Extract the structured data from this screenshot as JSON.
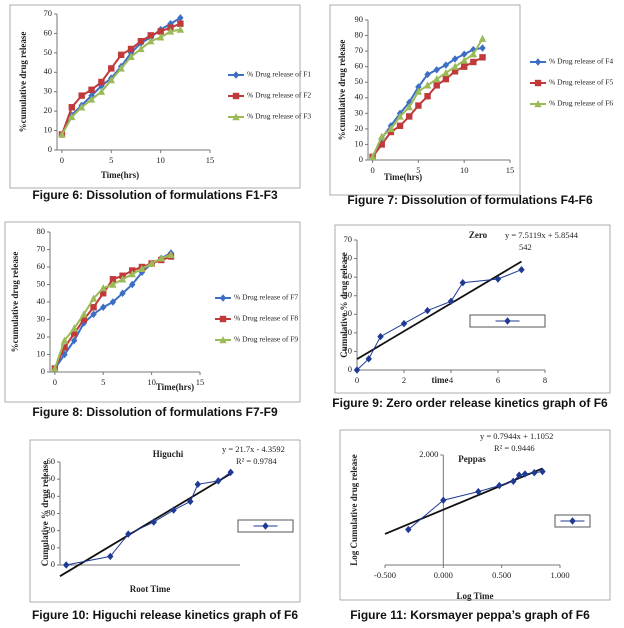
{
  "chart_data": [
    {
      "type": "line",
      "caption": "Figure 6: Dissolution of formulations F1-F3",
      "y_label": "%cumulative drug release",
      "x_label": "Time(hrs)",
      "x": [
        0,
        1,
        2,
        3,
        4,
        5,
        6,
        7,
        8,
        9,
        10,
        11,
        12
      ],
      "xlim": [
        -0.5,
        15
      ],
      "xticks": [
        0,
        5,
        10,
        15
      ],
      "ylim": [
        0,
        70
      ],
      "yticks": [
        0,
        10,
        20,
        30,
        40,
        50,
        60,
        70
      ],
      "series": [
        {
          "name": "% Drug release of F1",
          "color": "#3c6fc4",
          "marker": "diamond",
          "values": [
            8,
            18,
            23,
            28,
            33,
            37,
            43,
            50,
            55,
            58,
            62,
            65,
            68
          ]
        },
        {
          "name": "% Drug release of F2",
          "color": "#c0393b",
          "marker": "square",
          "values": [
            8,
            22,
            28,
            31,
            35,
            42,
            49,
            52,
            56,
            59,
            61,
            63,
            65
          ]
        },
        {
          "name": "% Drug release of F3",
          "color": "#9bbb59",
          "marker": "triangle",
          "values": [
            8,
            17,
            22,
            26,
            30,
            36,
            42,
            48,
            52,
            56,
            58,
            61,
            62
          ]
        }
      ]
    },
    {
      "type": "line",
      "caption": "Figure 7: Dissolution of formulations F4-F6",
      "y_label": "%cumulative drug release",
      "x_label": "Time(hrs)",
      "x": [
        0,
        1,
        2,
        3,
        4,
        5,
        6,
        7,
        8,
        9,
        10,
        11,
        12
      ],
      "xlim": [
        -0.5,
        15
      ],
      "xticks": [
        0,
        5,
        10,
        15
      ],
      "ylim": [
        0,
        90
      ],
      "yticks": [
        0,
        10,
        20,
        30,
        40,
        50,
        60,
        70,
        80,
        90
      ],
      "series": [
        {
          "name": "% Drug release of F4",
          "color": "#3c6fc4",
          "marker": "diamond",
          "values": [
            2,
            14,
            22,
            30,
            37,
            47,
            55,
            58,
            61,
            65,
            68,
            71,
            72
          ]
        },
        {
          "name": "% Drug release of F5",
          "color": "#c0393b",
          "marker": "square",
          "values": [
            2,
            10,
            18,
            22,
            28,
            35,
            41,
            48,
            52,
            57,
            60,
            63,
            66
          ]
        },
        {
          "name": "% Drug release of F6",
          "color": "#9bbb59",
          "marker": "triangle",
          "values": [
            2,
            15,
            20,
            28,
            34,
            44,
            48,
            52,
            56,
            60,
            64,
            68,
            78
          ]
        }
      ]
    },
    {
      "type": "line",
      "caption": "Figure 8: Dissolution of formulations F7-F9",
      "y_label": "%cumulative drug release",
      "x_label": "Time(hrs)",
      "x": [
        0,
        1,
        2,
        3,
        4,
        5,
        6,
        7,
        8,
        9,
        10,
        11,
        12
      ],
      "xlim": [
        -0.5,
        15
      ],
      "xticks": [
        0,
        5,
        10,
        15
      ],
      "ylim": [
        0,
        80
      ],
      "yticks": [
        0,
        10,
        20,
        30,
        40,
        50,
        60,
        70,
        80
      ],
      "series": [
        {
          "name": "% Drug release of F7",
          "color": "#3c6fc4",
          "marker": "diamond",
          "values": [
            2,
            10,
            18,
            28,
            33,
            37,
            40,
            45,
            50,
            57,
            62,
            65,
            68
          ]
        },
        {
          "name": "% Drug release of F8",
          "color": "#c0393b",
          "marker": "square",
          "values": [
            2,
            14,
            22,
            30,
            37,
            45,
            53,
            55,
            58,
            60,
            62,
            64,
            66
          ]
        },
        {
          "name": "% Drug release of F9",
          "color": "#9bbb59",
          "marker": "triangle",
          "values": [
            2,
            18,
            25,
            33,
            42,
            48,
            50,
            53,
            56,
            59,
            62,
            65,
            67
          ]
        }
      ]
    },
    {
      "type": "line",
      "caption": "Figure 9: Zero order release kinetics graph of F6",
      "title": "Zero",
      "equation": [
        "y = 7.5119x + 5.8544",
        "542"
      ],
      "y_label": "Cumulative % drug release",
      "x_label": "time",
      "x": [
        0,
        0.5,
        1,
        2,
        3,
        4,
        4.5,
        6,
        7
      ],
      "xlim": [
        0,
        8
      ],
      "xticks": [
        0,
        2,
        4,
        6,
        8
      ],
      "ylim": [
        0,
        70
      ],
      "yticks": [
        0,
        10,
        20,
        30,
        40,
        50,
        60,
        70
      ],
      "series": [
        {
          "color": "#1f3a93",
          "marker": "diamond",
          "values": [
            0,
            6,
            18,
            25,
            32,
            37,
            47,
            49,
            54
          ]
        }
      ],
      "trendline": {
        "slope": 7.5119,
        "intercept": 5.8544
      }
    },
    {
      "type": "line",
      "caption": "Figure 10: Higuchi release kinetics graph of F6",
      "title": "Higuchi",
      "equation": [
        "y = 21.7x - 4.3592",
        "R² = 0.9784"
      ],
      "y_label": "Cumulative % drug release",
      "x_label": "Root Time",
      "x": [
        0,
        0.71,
        1,
        1.41,
        1.73,
        2,
        2.12,
        2.45,
        2.65
      ],
      "xlim": [
        -0.1,
        2.8
      ],
      "xticks": [],
      "ylim": [
        0,
        60
      ],
      "yticks": [
        0,
        10,
        20,
        30,
        40,
        50,
        60
      ],
      "series": [
        {
          "color": "#1f3a93",
          "marker": "diamond",
          "values": [
            0,
            5,
            18,
            25,
            32,
            37,
            47,
            49,
            54
          ]
        }
      ],
      "trendline": {
        "slope": 21.7,
        "intercept": -4.3592
      }
    },
    {
      "type": "line",
      "caption": "Figure 11: Korsmayer peppa’s graph of F6",
      "title": "Peppas",
      "equation": [
        "y = 0.7944x + 1.1052",
        "R² = 0.9446"
      ],
      "y_label": "Log Cumulative drug release",
      "x_label": "Log Time",
      "x": [
        -0.3,
        0,
        0.3,
        0.48,
        0.6,
        0.65,
        0.7,
        0.78,
        0.85
      ],
      "xlim": [
        -0.5,
        1.0
      ],
      "xticks": [
        {
          "value": -0.5,
          "label": "-0.500"
        },
        {
          "value": 0,
          "label": "0.000"
        },
        {
          "value": 0.5,
          "label": "0.500"
        },
        {
          "value": 1,
          "label": "1.000"
        }
      ],
      "ylim": [
        0.2,
        2.0
      ],
      "yticks": [
        {
          "value": 2,
          "label": "2.000"
        }
      ],
      "series": [
        {
          "color": "#1f3a93",
          "marker": "diamond",
          "values": [
            0.78,
            1.26,
            1.4,
            1.5,
            1.57,
            1.67,
            1.69,
            1.71,
            1.73
          ]
        }
      ],
      "trendline": {
        "slope": 0.7944,
        "intercept": 1.1052
      }
    }
  ]
}
